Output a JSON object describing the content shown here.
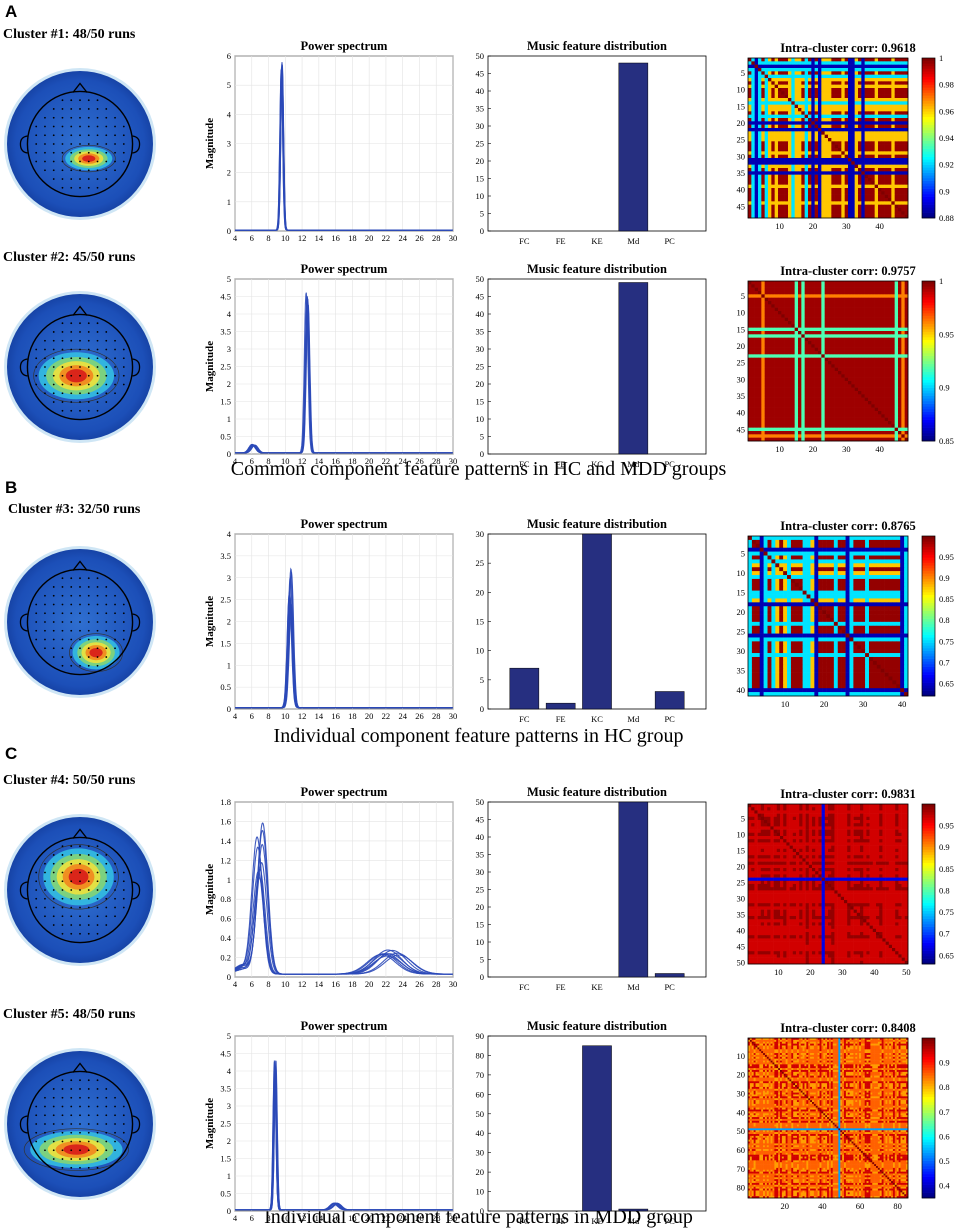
{
  "panels": [
    {
      "letter": "A",
      "caption": "Common component  feature patterns in HC and MDD groups"
    },
    {
      "letter": "B",
      "caption": "Individual component  feature patterns in HC group"
    },
    {
      "letter": "C",
      "caption": "Individual component  feature patterns in MDD group"
    }
  ],
  "titles": {
    "spectrum": "Power spectrum",
    "music": "Music feature distribution",
    "xlabel": "Frequency/Hz",
    "ylabel": "Magnitude"
  },
  "chart_data": [
    {
      "type": "line",
      "cluster": "Cluster #1: 48/50 runs",
      "title": "Power spectrum",
      "xlabel": "Frequency/Hz",
      "ylabel": "Magnitude",
      "xlim": [
        4,
        30
      ],
      "ylim": [
        0,
        6
      ],
      "xticks": [
        4,
        6,
        8,
        10,
        12,
        14,
        16,
        18,
        20,
        22,
        24,
        26,
        28,
        30
      ],
      "yticks": [
        0,
        1,
        2,
        3,
        4,
        5,
        6
      ],
      "series_summary": "multiple runs; sharp peak near 9.5 Hz",
      "peaks": [
        {
          "freq": 9.6,
          "height": 5.8,
          "width": 0.35,
          "spread": 0.06
        }
      ],
      "bars": {
        "title": "Music feature distribution",
        "categories": [
          "FC",
          "FE",
          "KE",
          "Md",
          "PC"
        ],
        "values": [
          0,
          0,
          0,
          48,
          0
        ],
        "ylim": [
          0,
          50
        ],
        "yticks": [
          0,
          5,
          10,
          15,
          20,
          25,
          30,
          35,
          40,
          45,
          50
        ]
      },
      "heatmap": {
        "title": "Intra-cluster corr: 0.9618",
        "size": 48,
        "seed": 11,
        "colorbar_range": [
          0.88,
          1
        ],
        "colorbar_ticks": [
          "0.88",
          "0.9",
          "0.92",
          "0.94",
          "0.96",
          "0.98",
          "1"
        ],
        "yticks": [
          5,
          10,
          15,
          20,
          25,
          30,
          35,
          40,
          45
        ],
        "xticks": [
          10,
          20,
          30,
          40
        ],
        "pattern": "mixed"
      }
    },
    {
      "type": "line",
      "cluster": "Cluster #2: 45/50 runs",
      "title": "Power spectrum",
      "xlabel": "Frequency/Hz",
      "ylabel": "Magnitude",
      "xlim": [
        4,
        30
      ],
      "ylim": [
        0,
        5
      ],
      "xticks": [
        4,
        6,
        8,
        10,
        12,
        14,
        16,
        18,
        20,
        22,
        24,
        26,
        28,
        30
      ],
      "yticks": [
        0,
        0.5,
        1,
        1.5,
        2,
        2.5,
        3,
        3.5,
        4,
        4.5,
        5
      ],
      "series_summary": "multiple runs; peak near 12.5 Hz",
      "peaks": [
        {
          "freq": 12.6,
          "height": 4.6,
          "width": 0.45,
          "spread": 0.08
        },
        {
          "freq": 6.2,
          "height": 0.25,
          "width": 0.8,
          "spread": 0.1
        }
      ],
      "bars": {
        "title": "Music feature distribution",
        "categories": [
          "FC",
          "FE",
          "KC",
          "Md",
          "PC"
        ],
        "values": [
          0,
          0,
          0,
          49,
          0
        ],
        "ylim": [
          0,
          50
        ],
        "yticks": [
          0,
          5,
          10,
          15,
          20,
          25,
          30,
          35,
          40,
          45,
          50
        ]
      },
      "heatmap": {
        "title": "Intra-cluster corr: 0.9757",
        "size": 48,
        "seed": 22,
        "colorbar_range": [
          0.85,
          1
        ],
        "colorbar_ticks": [
          "0.85",
          "0.9",
          "0.95",
          "1"
        ],
        "yticks": [
          5,
          10,
          15,
          20,
          25,
          30,
          35,
          40,
          45
        ],
        "xticks": [
          10,
          20,
          30,
          40
        ],
        "pattern": "lines"
      }
    },
    {
      "type": "line",
      "cluster": "Cluster #3: 32/50 runs",
      "title": "Power spectrum",
      "xlabel": "Frequency/Hz",
      "ylabel": "Magnitude",
      "xlim": [
        4,
        30
      ],
      "ylim": [
        0,
        4
      ],
      "xticks": [
        4,
        6,
        8,
        10,
        12,
        14,
        16,
        18,
        20,
        22,
        24,
        26,
        28,
        30
      ],
      "yticks": [
        0,
        0.5,
        1,
        1.5,
        2,
        2.5,
        3,
        3.5,
        4
      ],
      "series_summary": "multiple runs; peak near 10.5 Hz with variability",
      "peaks": [
        {
          "freq": 10.6,
          "height": 3.5,
          "width": 0.55,
          "spread": 0.25
        }
      ],
      "bars": {
        "title": "Music feature distribution",
        "categories": [
          "FC",
          "FE",
          "KC",
          "Md",
          "PC"
        ],
        "values": [
          7,
          1,
          30,
          0,
          3
        ],
        "ylim": [
          0,
          30
        ],
        "yticks": [
          0,
          5,
          10,
          15,
          20,
          25,
          30
        ]
      },
      "heatmap": {
        "title": "Intra-cluster corr: 0.8765",
        "size": 41,
        "seed": 33,
        "colorbar_range": [
          0.62,
          1
        ],
        "colorbar_ticks": [
          "0.65",
          "0.7",
          "0.75",
          "0.8",
          "0.85",
          "0.9",
          "0.95"
        ],
        "yticks": [
          5,
          10,
          15,
          20,
          25,
          30,
          35,
          40
        ],
        "xticks": [
          10,
          20,
          30,
          40
        ],
        "pattern": "mixed"
      }
    },
    {
      "type": "line",
      "cluster": "Cluster #4: 50/50 runs",
      "title": "Power spectrum",
      "xlabel": "Frequency/Hz",
      "ylabel": "Magnitude",
      "xlim": [
        4,
        30
      ],
      "ylim": [
        0,
        1.8
      ],
      "xticks": [
        4,
        6,
        8,
        10,
        12,
        14,
        16,
        18,
        20,
        22,
        24,
        26,
        28,
        30
      ],
      "yticks": [
        0,
        0.2,
        0.4,
        0.6,
        0.8,
        1,
        1.2,
        1.4,
        1.6,
        1.8
      ],
      "series_summary": "multiple runs; broad peak near 7 Hz and beta bump 20-26 Hz",
      "peaks": [
        {
          "freq": 7.0,
          "height": 1.6,
          "width": 1.3,
          "spread": 0.3
        },
        {
          "freq": 22.5,
          "height": 0.25,
          "width": 3.5,
          "spread": 0.2
        }
      ],
      "bars": {
        "title": "Music feature distribution",
        "categories": [
          "FC",
          "FE",
          "KE",
          "Md",
          "PC"
        ],
        "values": [
          0,
          0,
          0,
          50,
          1
        ],
        "ylim": [
          0,
          50
        ],
        "yticks": [
          0,
          5,
          10,
          15,
          20,
          25,
          30,
          35,
          40,
          45,
          50
        ]
      },
      "heatmap": {
        "title": "Intra-cluster corr: 0.9831",
        "size": 50,
        "seed": 44,
        "colorbar_range": [
          0.63,
          1
        ],
        "colorbar_ticks": [
          "0.65",
          "0.7",
          "0.75",
          "0.8",
          "0.85",
          "0.9",
          "0.95"
        ],
        "yticks": [
          5,
          10,
          15,
          20,
          25,
          30,
          35,
          40,
          45,
          50
        ],
        "xticks": [
          10,
          20,
          30,
          40,
          50
        ],
        "pattern": "uniform"
      }
    },
    {
      "type": "line",
      "cluster": "Cluster #5: 48/50 runs",
      "title": "Power spectrum",
      "xlabel": "Frequency/Hz",
      "ylabel": "Magnitude",
      "xlim": [
        4,
        30
      ],
      "ylim": [
        0,
        5
      ],
      "xticks": [
        4,
        6,
        8,
        10,
        12,
        14,
        16,
        18,
        20,
        22,
        24,
        26,
        28,
        30
      ],
      "yticks": [
        0,
        0.5,
        1,
        1.5,
        2,
        2.5,
        3,
        3.5,
        4,
        4.5,
        5
      ],
      "series_summary": "multiple runs; sharp peak near 8.8 Hz",
      "peaks": [
        {
          "freq": 8.8,
          "height": 4.6,
          "width": 0.35,
          "spread": 0.12
        },
        {
          "freq": 16.0,
          "height": 0.2,
          "width": 1.0,
          "spread": 0.1
        }
      ],
      "bars": {
        "title": "Music feature distribution",
        "categories": [
          "FC",
          "FE",
          "KE",
          "Md",
          "PC"
        ],
        "values": [
          0,
          0,
          85,
          1,
          0
        ],
        "ylim": [
          0,
          90
        ],
        "yticks": [
          0,
          10,
          20,
          30,
          40,
          50,
          60,
          70,
          80,
          90
        ]
      },
      "heatmap": {
        "title": "Intra-cluster corr: 0.8408",
        "size": 85,
        "seed": 55,
        "colorbar_range": [
          0.35,
          1
        ],
        "colorbar_ticks": [
          "0.4",
          "0.5",
          "0.6",
          "0.7",
          "0.8",
          "0.9"
        ],
        "yticks": [
          10,
          20,
          30,
          40,
          50,
          60,
          70,
          80
        ],
        "xticks": [
          20,
          40,
          60,
          80
        ],
        "pattern": "fine"
      }
    }
  ]
}
